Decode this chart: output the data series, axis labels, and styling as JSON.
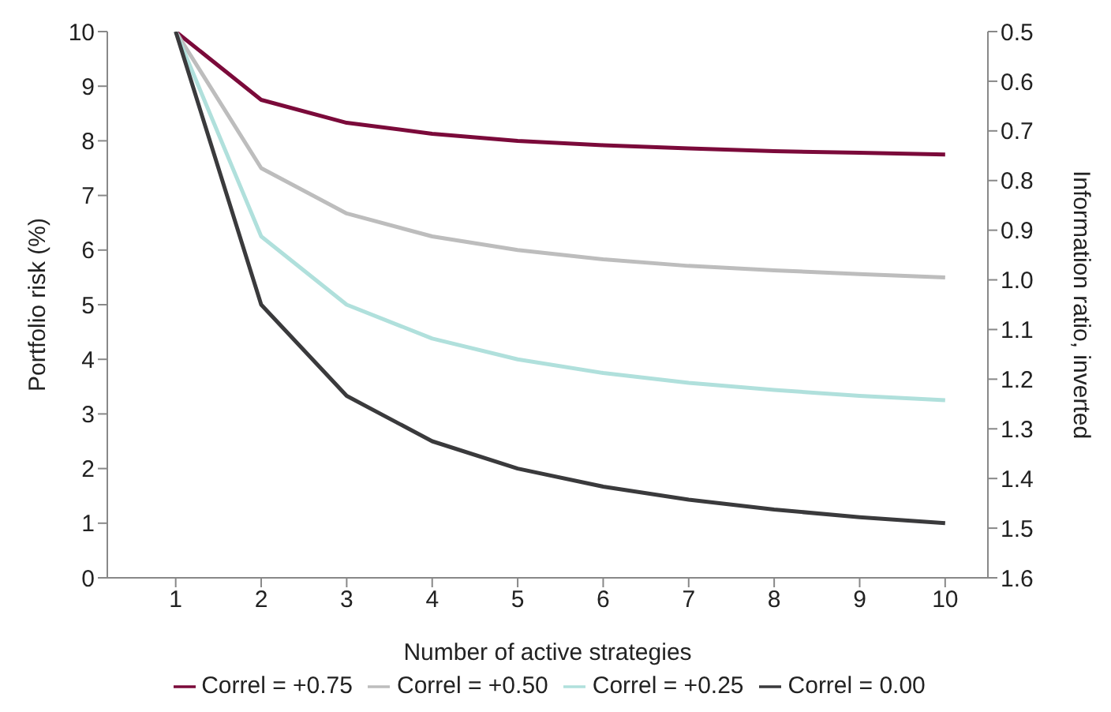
{
  "chart_data": {
    "type": "line",
    "xlabel": "Number of active strategies",
    "ylabel": "Portfolio risk (%)",
    "y2label": "Information ratio, inverted",
    "x": [
      1,
      2,
      3,
      4,
      5,
      6,
      7,
      8,
      9,
      10
    ],
    "series": [
      {
        "name": "Correl = +0.75",
        "color": "#7b0a3a",
        "values": [
          10,
          8.75,
          8.33,
          8.13,
          8.0,
          7.92,
          7.86,
          7.81,
          7.78,
          7.75
        ]
      },
      {
        "name": "Correl = +0.50",
        "color": "#bdbdbd",
        "values": [
          10,
          7.5,
          6.67,
          6.25,
          6.0,
          5.83,
          5.71,
          5.63,
          5.56,
          5.5
        ]
      },
      {
        "name": "Correl = +0.25",
        "color": "#b0e0dc",
        "values": [
          10,
          6.25,
          5.0,
          4.38,
          4.0,
          3.75,
          3.57,
          3.44,
          3.33,
          3.25
        ]
      },
      {
        "name": "Correl = 0.00",
        "color": "#3a3a3c",
        "values": [
          10,
          5,
          3.33,
          2.5,
          2,
          1.67,
          1.43,
          1.25,
          1.11,
          1
        ]
      }
    ],
    "xlim": [
      0.2,
      10.5
    ],
    "xticks": [
      1,
      2,
      3,
      4,
      5,
      6,
      7,
      8,
      9,
      10
    ],
    "ylim": [
      0,
      10
    ],
    "yticks": [
      0,
      1,
      2,
      3,
      4,
      5,
      6,
      7,
      8,
      9,
      10
    ],
    "y2lim": [
      1.6,
      0.5
    ],
    "y2ticks": [
      0.5,
      0.6,
      0.7,
      0.8,
      0.9,
      {
        "value": 1,
        "label": "1.0"
      },
      1.1,
      1.2,
      1.3,
      1.4,
      1.5,
      1.6
    ],
    "grid": false,
    "legend": "bottom",
    "marker": "none",
    "line_style": "solid"
  }
}
